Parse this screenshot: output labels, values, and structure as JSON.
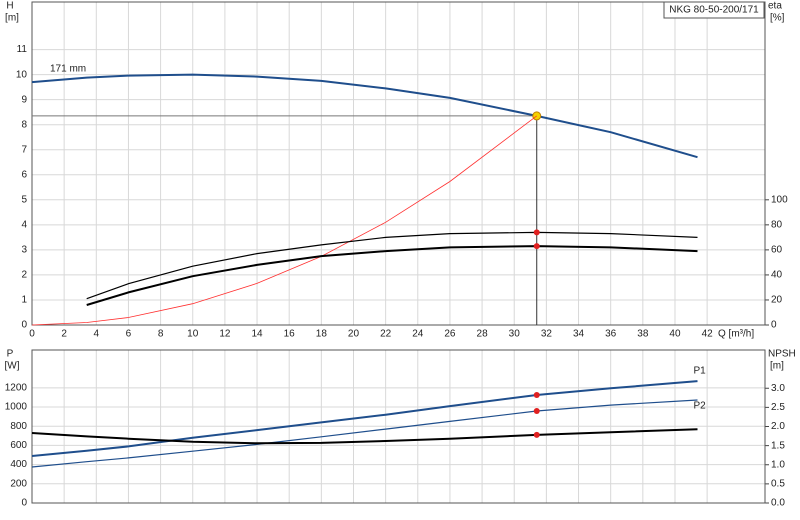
{
  "chart_data": [
    {
      "type": "line",
      "title": "NKG 80-50-200/171",
      "annotation": "171 mm",
      "ylabel": "H",
      "yunit": "[m]",
      "y2label": "eta",
      "y2unit": "[%]",
      "xlabel": "Q [m³/h]",
      "x": [
        0,
        3.4,
        6,
        10,
        14,
        18,
        22,
        26,
        31.4,
        36,
        41.4
      ],
      "xlim": [
        0,
        45.6
      ],
      "xticks": [
        0,
        2,
        4,
        6,
        8,
        10,
        12,
        14,
        16,
        18,
        20,
        22,
        24,
        26,
        28,
        30,
        32,
        34,
        36,
        38,
        40,
        42
      ],
      "ylim": [
        0,
        12.9
      ],
      "yticks": [
        0,
        1,
        2,
        3,
        4,
        5,
        6,
        7,
        8,
        9,
        10,
        11
      ],
      "y2lim": [
        0,
        258
      ],
      "y2ticks": [
        0,
        20,
        40,
        60,
        80,
        100
      ],
      "grid": true,
      "operating_q": 31.4,
      "series": [
        {
          "color": "#1f4e8c",
          "width": 2,
          "marker_color": "#f5d200",
          "values": [
            9.7,
            9.88,
            9.96,
            10.0,
            9.92,
            9.75,
            9.45,
            9.07,
            8.35,
            7.7,
            6.7
          ]
        },
        {
          "color": "#ff3030",
          "width": 0.8,
          "values": [
            0,
            0.1,
            0.3,
            0.85,
            1.66,
            2.74,
            4.1,
            5.73,
            8.35,
            null,
            null
          ]
        },
        {
          "color": "#000000",
          "width": 1.2,
          "axis": "y2",
          "marker_color": "#e02020",
          "values": [
            null,
            21,
            33,
            47,
            57,
            64,
            70,
            73,
            74,
            73,
            70
          ]
        },
        {
          "color": "#000000",
          "width": 2,
          "axis": "y2",
          "marker_color": "#e02020",
          "values": [
            null,
            16,
            26,
            39,
            48,
            55,
            59,
            62,
            63,
            62,
            59
          ]
        }
      ]
    },
    {
      "type": "line",
      "ylabel": "P",
      "yunit": "[W]",
      "y2label": "NPSH",
      "y2unit": "[m]",
      "x": [
        0,
        3.4,
        6,
        10,
        14,
        18,
        22,
        26,
        31.4,
        36,
        41.4
      ],
      "ylim": [
        0,
        1594
      ],
      "yticks": [
        0,
        200,
        400,
        600,
        800,
        1000,
        1200
      ],
      "y2lim": [
        0,
        4.0
      ],
      "y2ticks": [
        {
          "value": 0,
          "label": "0.0"
        },
        0.5,
        {
          "value": 1,
          "label": "1.0"
        },
        1.5,
        {
          "value": 2,
          "label": "2.0"
        },
        2.5,
        {
          "value": 3,
          "label": "3.0"
        }
      ],
      "grid": true,
      "operating_q": 31.4,
      "series": [
        {
          "name": "P1",
          "color": "#1f4e8c",
          "width": 2,
          "marker_color": "#e02020",
          "values": [
            490,
            545,
            590,
            680,
            760,
            840,
            920,
            1010,
            1125,
            1195,
            1270
          ]
        },
        {
          "name": "P2",
          "color": "#1f4e8c",
          "width": 1.2,
          "marker_color": "#e02020",
          "values": [
            375,
            430,
            470,
            540,
            610,
            690,
            770,
            850,
            958,
            1020,
            1073
          ]
        },
        {
          "color": "#000000",
          "width": 2,
          "axis": "y2",
          "marker_color": "#e02020",
          "values": [
            1.83,
            1.74,
            1.68,
            1.6,
            1.56,
            1.57,
            1.62,
            1.68,
            1.78,
            1.85,
            1.93
          ]
        }
      ]
    }
  ]
}
